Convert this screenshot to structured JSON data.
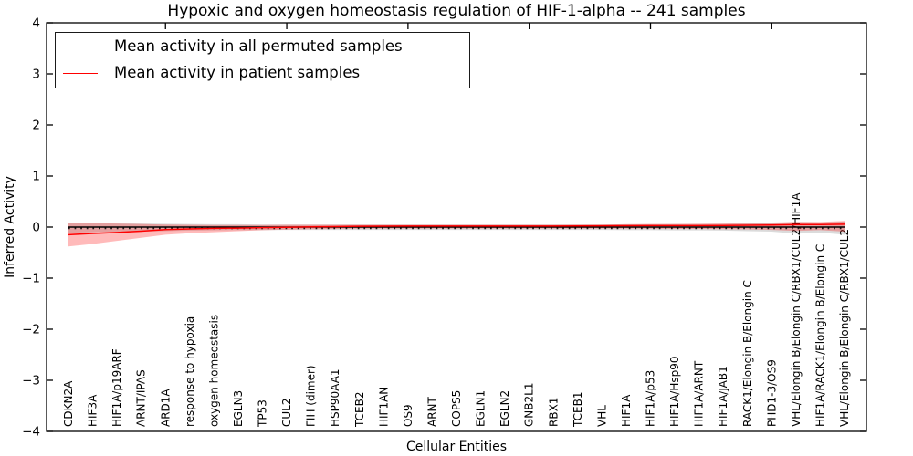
{
  "chart_data": {
    "type": "line",
    "title": "Hypoxic and oxygen homeostasis regulation of HIF-1-alpha -- 241 samples",
    "xlabel": "Cellular Entities",
    "ylabel": "Inferred Activity",
    "ylim": [
      -4,
      4
    ],
    "yticks": [
      4,
      3,
      2,
      1,
      0,
      -1,
      -2,
      -3,
      -4
    ],
    "ytick_labels": [
      "4",
      "3",
      "2",
      "1",
      "0",
      "−1",
      "−2",
      "−3",
      "−4"
    ],
    "xtick_indices": [
      4,
      9,
      14,
      19,
      24,
      29
    ],
    "grid": false,
    "legend_position": "upper left",
    "legend": [
      {
        "label": "Mean activity in all permuted samples",
        "color": "#000000"
      },
      {
        "label": "Mean activity in patient samples",
        "color": "#ff0000"
      }
    ],
    "entities": [
      "CDKN2A",
      "HIF3A",
      "HIF1A/p19ARF",
      "ARNT/IPAS",
      "ARD1A",
      "response to hypoxia",
      "oxygen homeostasis",
      "EGLN3",
      "TP53",
      "CUL2",
      "FIH (dimer)",
      "HSP90AA1",
      "TCEB2",
      "HIF1AN",
      "OS9",
      "ARNT",
      "COPS5",
      "EGLN1",
      "EGLN2",
      "GNB2L1",
      "RBX1",
      "TCEB1",
      "VHL",
      "HIF1A",
      "HIF1A/p53",
      "HIF1A/Hsp90",
      "HIF1A/ARNT",
      "HIF1A/JAB1",
      "RACK1/Elongin B/Elongin C",
      "PHD1-3/OS9",
      "VHL/Elongin B/Elongin C/RBX1/CUL2/HIF1A",
      "HIF1A/RACK1/Elongin B/Elongin C",
      "VHL/Elongin B/Elongin C/RBX1/CUL2"
    ],
    "series": [
      {
        "name": "Mean activity in all permuted samples",
        "color": "#000000",
        "band_alpha": 0.14,
        "values": [
          0,
          0,
          0,
          0,
          0,
          0,
          0,
          0,
          0,
          0,
          0,
          0,
          0,
          0,
          0,
          0,
          0,
          0,
          0,
          0,
          0,
          0,
          0,
          0,
          0,
          0,
          0,
          0,
          0,
          0,
          0,
          0,
          0
        ],
        "band_high": [
          0.09,
          0.08,
          0.075,
          0.07,
          0.065,
          0.06,
          0.055,
          0.055,
          0.05,
          0.05,
          0.05,
          0.05,
          0.05,
          0.05,
          0.05,
          0.05,
          0.05,
          0.05,
          0.05,
          0.05,
          0.05,
          0.05,
          0.05,
          0.055,
          0.055,
          0.06,
          0.06,
          0.065,
          0.07,
          0.08,
          0.1,
          0.09,
          0.11
        ],
        "band_low": [
          -0.11,
          -0.1,
          -0.09,
          -0.085,
          -0.08,
          -0.07,
          -0.065,
          -0.06,
          -0.06,
          -0.055,
          -0.055,
          -0.055,
          -0.055,
          -0.055,
          -0.055,
          -0.055,
          -0.055,
          -0.055,
          -0.055,
          -0.055,
          -0.055,
          -0.055,
          -0.055,
          -0.06,
          -0.06,
          -0.065,
          -0.065,
          -0.07,
          -0.08,
          -0.09,
          -0.13,
          -0.11,
          -0.15
        ]
      },
      {
        "name": "Mean activity in patient samples",
        "color": "#ff0000",
        "band_alpha": 0.27,
        "values": [
          -0.15,
          -0.125,
          -0.105,
          -0.08,
          -0.05,
          -0.035,
          -0.025,
          -0.02,
          -0.012,
          -0.005,
          0.005,
          0.01,
          0.015,
          0.018,
          0.02,
          0.02,
          0.02,
          0.02,
          0.02,
          0.02,
          0.02,
          0.022,
          0.025,
          0.027,
          0.028,
          0.03,
          0.03,
          0.032,
          0.036,
          0.04,
          0.048,
          0.05,
          0.055
        ],
        "band_high": [
          0.09,
          0.08,
          0.07,
          0.06,
          0.05,
          0.045,
          0.04,
          0.04,
          0.04,
          0.045,
          0.045,
          0.045,
          0.045,
          0.045,
          0.045,
          0.045,
          0.045,
          0.045,
          0.045,
          0.045,
          0.045,
          0.05,
          0.05,
          0.055,
          0.06,
          0.06,
          0.065,
          0.07,
          0.08,
          0.09,
          0.1,
          0.1,
          0.12
        ],
        "band_low": [
          -0.38,
          -0.33,
          -0.27,
          -0.21,
          -0.15,
          -0.12,
          -0.1,
          -0.08,
          -0.06,
          -0.05,
          -0.04,
          -0.035,
          -0.03,
          -0.03,
          -0.03,
          -0.03,
          -0.03,
          -0.03,
          -0.03,
          -0.03,
          -0.03,
          -0.03,
          -0.03,
          -0.03,
          -0.032,
          -0.035,
          -0.035,
          -0.04,
          -0.045,
          -0.055,
          -0.075,
          -0.06,
          -0.09
        ]
      }
    ]
  }
}
